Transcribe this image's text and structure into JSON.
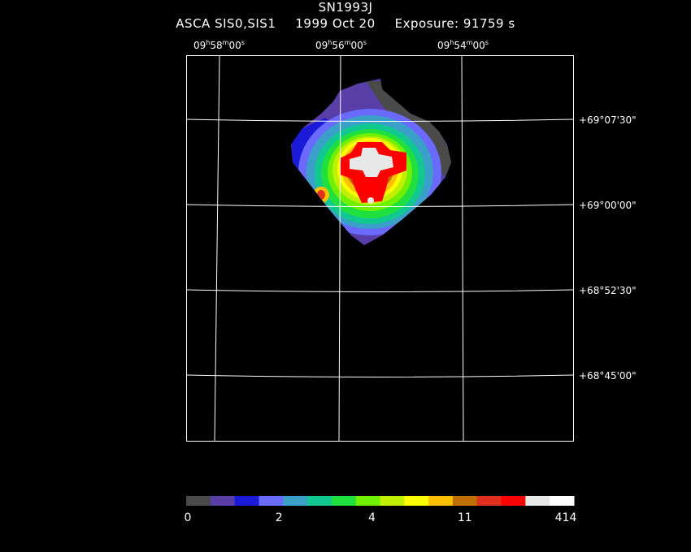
{
  "header": {
    "object": "SN1993J",
    "instrument": "ASCA SIS0,SIS1",
    "date": "1999 Oct 20",
    "exposure": "Exposure: 91759 s"
  },
  "ra_labels": [
    {
      "h": "09",
      "m": "58",
      "s": "00"
    },
    {
      "h": "09",
      "m": "56",
      "s": "00"
    },
    {
      "h": "09",
      "m": "54",
      "s": "00"
    }
  ],
  "dec_labels": [
    {
      "text": "+69°07'30\""
    },
    {
      "text": "+69°00'00\""
    },
    {
      "text": "+68°52'30\""
    },
    {
      "text": "+68°45'00\""
    }
  ],
  "colorbar": {
    "colors": [
      "#4a4a4a",
      "#5a3ea8",
      "#1a1ad8",
      "#6a6aff",
      "#3aa0c8",
      "#10c890",
      "#20e040",
      "#70f000",
      "#c0f000",
      "#ffff00",
      "#ffc000",
      "#c07000",
      "#e03020",
      "#ff0000",
      "#e8e8e8",
      "#ffffff"
    ],
    "labels": [
      "0",
      "2",
      "4",
      "11",
      "414"
    ]
  }
}
